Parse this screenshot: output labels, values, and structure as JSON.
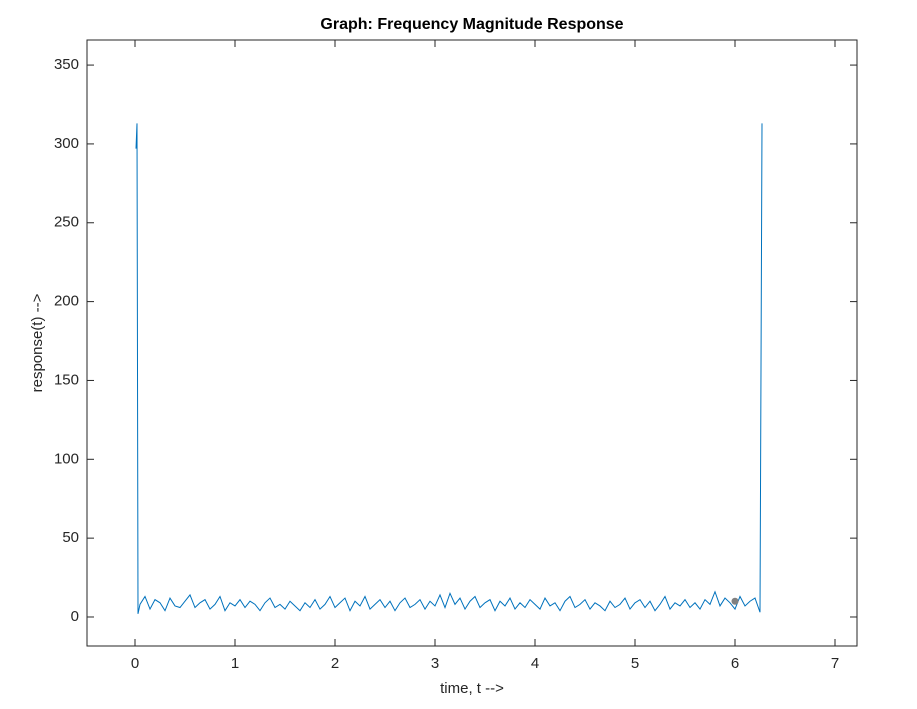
{
  "chart_data": {
    "type": "line",
    "title": "Graph: Frequency Magnitude Response",
    "xlabel": "time, t -->",
    "ylabel": "response(t) -->",
    "xlim": [
      -0.48,
      7.22
    ],
    "ylim": [
      -18.4,
      365.9
    ],
    "xticks": [
      0,
      1,
      2,
      3,
      4,
      5,
      6,
      7
    ],
    "yticks": [
      0,
      50,
      100,
      150,
      200,
      250,
      300,
      350
    ],
    "series": [
      {
        "color": "#0072bd",
        "x": [
          0.01,
          0.02,
          0.03,
          0.05,
          0.1,
          0.15,
          0.2,
          0.25,
          0.3,
          0.35,
          0.4,
          0.45,
          0.5,
          0.55,
          0.6,
          0.65,
          0.7,
          0.75,
          0.8,
          0.85,
          0.9,
          0.95,
          1.0,
          1.05,
          1.1,
          1.15,
          1.2,
          1.25,
          1.3,
          1.35,
          1.4,
          1.45,
          1.5,
          1.55,
          1.6,
          1.65,
          1.7,
          1.75,
          1.8,
          1.85,
          1.9,
          1.95,
          2.0,
          2.05,
          2.1,
          2.15,
          2.2,
          2.25,
          2.3,
          2.35,
          2.4,
          2.45,
          2.5,
          2.55,
          2.6,
          2.65,
          2.7,
          2.75,
          2.8,
          2.85,
          2.9,
          2.95,
          3.0,
          3.05,
          3.1,
          3.15,
          3.2,
          3.25,
          3.3,
          3.35,
          3.4,
          3.45,
          3.5,
          3.55,
          3.6,
          3.65,
          3.7,
          3.75,
          3.8,
          3.85,
          3.9,
          3.95,
          4.0,
          4.05,
          4.1,
          4.15,
          4.2,
          4.25,
          4.3,
          4.35,
          4.4,
          4.45,
          4.5,
          4.55,
          4.6,
          4.65,
          4.7,
          4.75,
          4.8,
          4.85,
          4.9,
          4.95,
          5.0,
          5.05,
          5.1,
          5.15,
          5.2,
          5.25,
          5.3,
          5.35,
          5.4,
          5.45,
          5.5,
          5.55,
          5.6,
          5.65,
          5.7,
          5.75,
          5.8,
          5.85,
          5.9,
          5.95,
          6.0,
          6.05,
          6.1,
          6.15,
          6.2,
          6.25,
          6.27
        ],
        "values": [
          297,
          313,
          2,
          8,
          13,
          5,
          11,
          9,
          4,
          12,
          7,
          6,
          10,
          14,
          6,
          9,
          11,
          5,
          8,
          13,
          4,
          9,
          7,
          11,
          6,
          10,
          8,
          4,
          9,
          12,
          6,
          8,
          5,
          10,
          7,
          4,
          9,
          6,
          11,
          5,
          8,
          13,
          6,
          9,
          12,
          4,
          10,
          7,
          13,
          5,
          8,
          11,
          6,
          10,
          4,
          9,
          12,
          6,
          8,
          11,
          5,
          10,
          7,
          14,
          6,
          15,
          8,
          12,
          5,
          10,
          13,
          6,
          9,
          11,
          4,
          10,
          7,
          12,
          5,
          9,
          6,
          11,
          8,
          5,
          12,
          7,
          9,
          4,
          10,
          13,
          6,
          8,
          11,
          5,
          9,
          7,
          4,
          10,
          6,
          8,
          12,
          5,
          9,
          11,
          6,
          10,
          4,
          8,
          13,
          5,
          9,
          7,
          11,
          6,
          9,
          5,
          11,
          8,
          16,
          7,
          12,
          9,
          5,
          13,
          7,
          10,
          12,
          3,
          313
        ]
      },
      {
        "color": "#808080",
        "marker": true,
        "x": [
          6
        ],
        "values": [
          10
        ]
      }
    ]
  }
}
